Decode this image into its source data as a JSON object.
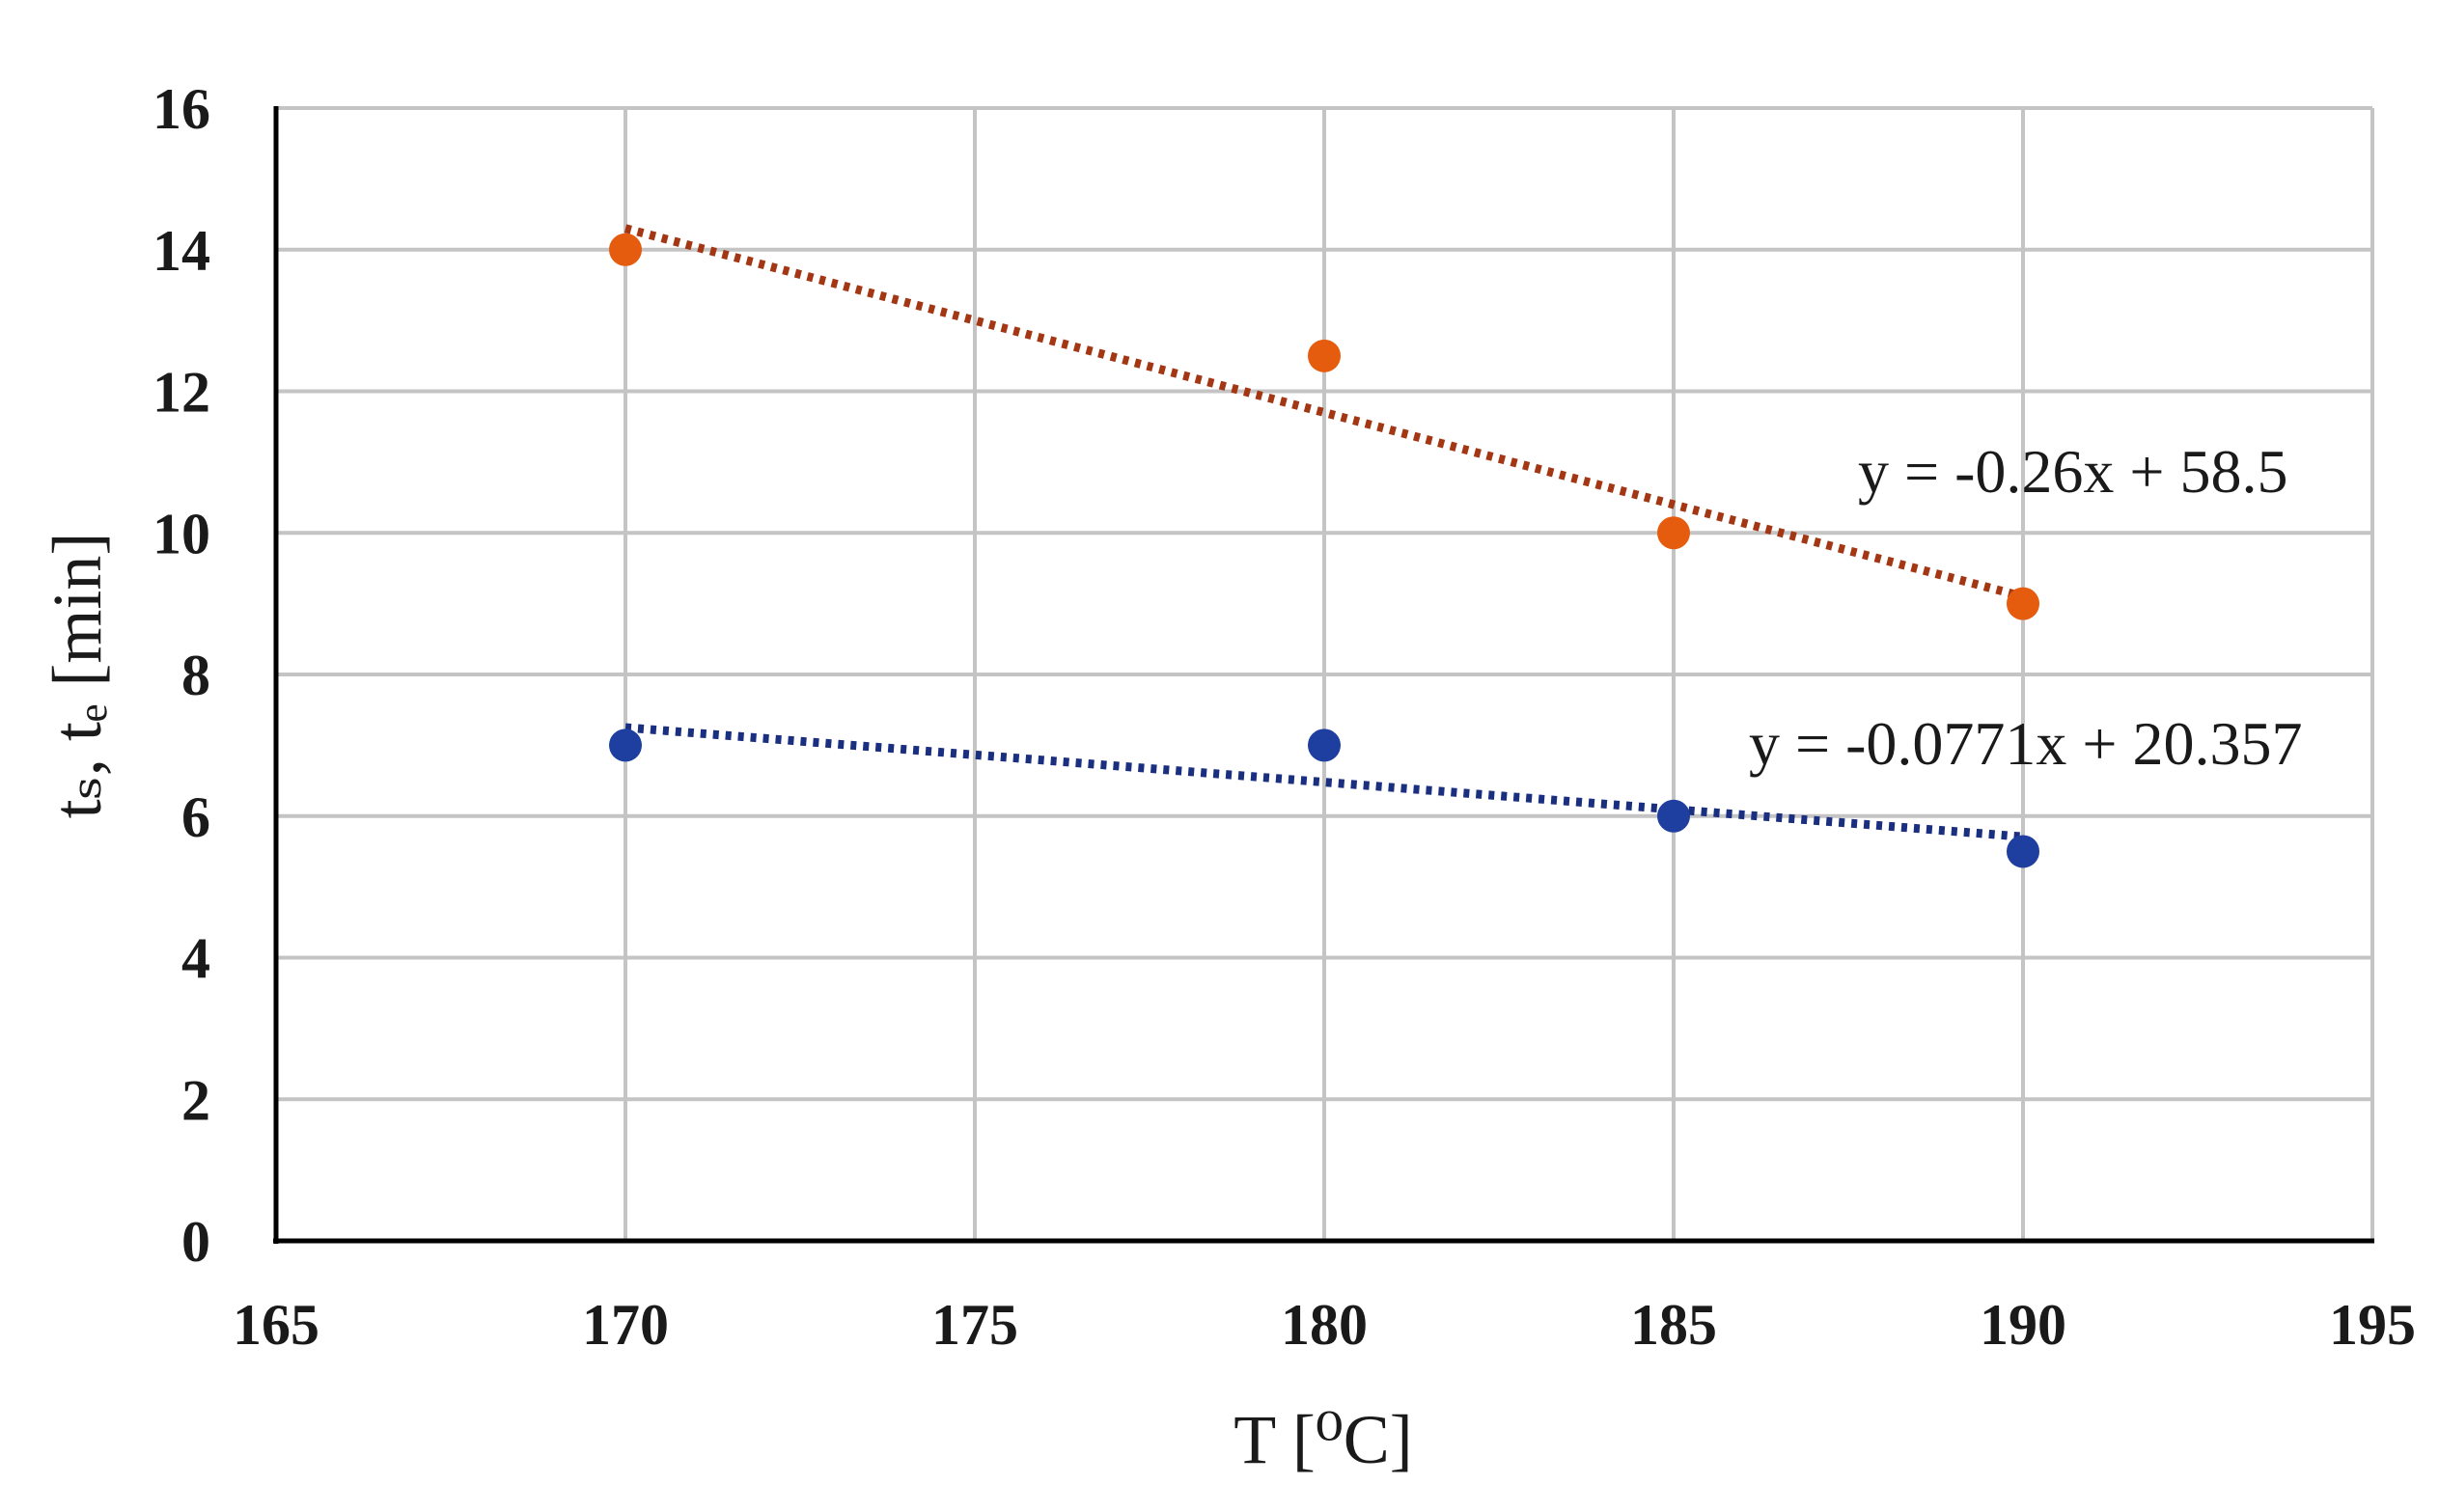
{
  "chart_data": {
    "type": "scatter",
    "title": "",
    "xlabel": "T [⁰C]",
    "ylabel": "tₛ, tₑ [min]",
    "xlim": [
      165,
      195
    ],
    "ylim": [
      0,
      16
    ],
    "xticks": [
      165,
      170,
      175,
      180,
      185,
      190,
      195
    ],
    "yticks": [
      0,
      2,
      4,
      6,
      8,
      10,
      12,
      14,
      16
    ],
    "grid": true,
    "series": [
      {
        "name": "te",
        "color": "#e65c0f",
        "trend_color": "#a33714",
        "x": [
          170,
          180,
          185,
          190
        ],
        "y": [
          14,
          12.5,
          10,
          9
        ],
        "trendline": {
          "slope": -0.26,
          "intercept": 58.5,
          "label": "y = -0.26x + 58.5"
        }
      },
      {
        "name": "ts",
        "color": "#1f3fa0",
        "trend_color": "#1a2f80",
        "x": [
          170,
          180,
          185,
          190
        ],
        "y": [
          7,
          7,
          6,
          5.5
        ],
        "trendline": {
          "slope": -0.0771,
          "intercept": 20.357,
          "label": "y = -0.0771x + 20.357"
        }
      }
    ]
  }
}
